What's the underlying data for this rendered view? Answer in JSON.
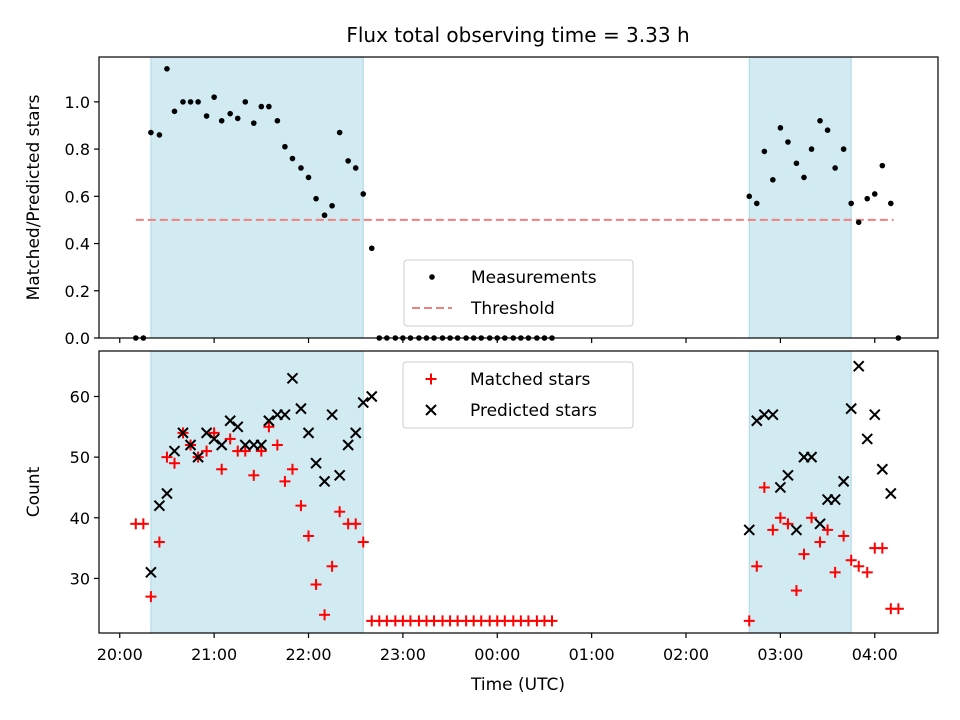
{
  "chart_data": {
    "title": "Flux total observing time = 3.33 h",
    "xlabel": "Time (UTC)",
    "x_ticks": [
      {
        "t": 20.0,
        "label": "20:00"
      },
      {
        "t": 21.0,
        "label": "21:00"
      },
      {
        "t": 22.0,
        "label": "22:00"
      },
      {
        "t": 23.0,
        "label": "23:00"
      },
      {
        "t": 24.0,
        "label": "00:00"
      },
      {
        "t": 25.0,
        "label": "01:00"
      },
      {
        "t": 26.0,
        "label": "02:00"
      },
      {
        "t": 27.0,
        "label": "03:00"
      },
      {
        "t": 28.0,
        "label": "04:00"
      }
    ],
    "xlim": [
      19.78,
      28.67
    ],
    "observing_windows": [
      [
        20.33,
        22.58
      ],
      [
        26.67,
        27.75
      ]
    ],
    "window_color": "#add8e6",
    "panels": [
      {
        "type": "scatter",
        "ylabel": "Matched/Predicted stars",
        "ylim": [
          0.0,
          1.19
        ],
        "y_ticks": [
          "0.0",
          "0.2",
          "0.4",
          "0.6",
          "0.8",
          "1.0"
        ],
        "y_tick_values": [
          0.0,
          0.2,
          0.4,
          0.6,
          0.8,
          1.0
        ],
        "threshold": {
          "label": "Threshold",
          "y": 0.5,
          "x_range": [
            20.17,
            28.2
          ],
          "color": "#f08080"
        },
        "legend": [
          "Measurements",
          "Threshold"
        ],
        "legend_position": "lower-center",
        "series": [
          {
            "name": "Measurements",
            "marker": "dot",
            "color": "#000000",
            "x": [
              20.17,
              20.25,
              20.33,
              20.42,
              20.5,
              20.58,
              20.67,
              20.75,
              20.83,
              20.92,
              21.0,
              21.08,
              21.17,
              21.25,
              21.33,
              21.42,
              21.5,
              21.58,
              21.67,
              21.75,
              21.83,
              21.92,
              22.0,
              22.08,
              22.17,
              22.25,
              22.33,
              22.42,
              22.5,
              22.58,
              22.67,
              22.75,
              22.83,
              22.92,
              23.0,
              23.08,
              23.17,
              23.25,
              23.33,
              23.42,
              23.5,
              23.58,
              23.67,
              23.75,
              23.83,
              23.92,
              24.0,
              24.08,
              24.17,
              24.25,
              24.33,
              24.42,
              24.5,
              24.58,
              26.67,
              26.75,
              26.83,
              26.92,
              27.0,
              27.08,
              27.17,
              27.25,
              27.33,
              27.42,
              27.5,
              27.58,
              27.67,
              27.75,
              27.83,
              27.92,
              28.0,
              28.08,
              28.17,
              28.25
            ],
            "y": [
              0.0,
              0.0,
              0.87,
              0.86,
              1.14,
              0.96,
              1.0,
              1.0,
              1.0,
              0.94,
              1.02,
              0.92,
              0.95,
              0.93,
              1.0,
              0.91,
              0.98,
              0.98,
              0.92,
              0.81,
              0.76,
              0.72,
              0.68,
              0.59,
              0.52,
              0.56,
              0.87,
              0.75,
              0.72,
              0.61,
              0.38,
              0.0,
              0.0,
              0.0,
              0.0,
              0.0,
              0.0,
              0.0,
              0.0,
              0.0,
              0.0,
              0.0,
              0.0,
              0.0,
              0.0,
              0.0,
              0.0,
              0.0,
              0.0,
              0.0,
              0.0,
              0.0,
              0.0,
              0.0,
              0.6,
              0.57,
              0.79,
              0.67,
              0.89,
              0.83,
              0.74,
              0.68,
              0.8,
              0.92,
              0.88,
              0.72,
              0.8,
              0.57,
              0.49,
              0.59,
              0.61,
              0.73,
              0.57,
              0.0
            ]
          }
        ]
      },
      {
        "type": "scatter",
        "ylabel": "Count",
        "ylim": [
          21.0,
          67.5
        ],
        "y_ticks": [
          "30",
          "40",
          "50",
          "60"
        ],
        "y_tick_values": [
          30,
          40,
          50,
          60
        ],
        "legend": [
          "Matched stars",
          "Predicted stars"
        ],
        "legend_position": "upper-center",
        "series": [
          {
            "name": "Matched stars",
            "marker": "plus",
            "color": "#ff0000",
            "x": [
              20.17,
              20.25,
              20.33,
              20.42,
              20.5,
              20.58,
              20.67,
              20.75,
              20.83,
              20.92,
              21.0,
              21.08,
              21.17,
              21.25,
              21.33,
              21.42,
              21.5,
              21.58,
              21.67,
              21.75,
              21.83,
              21.92,
              22.0,
              22.08,
              22.17,
              22.25,
              22.33,
              22.42,
              22.5,
              22.58,
              22.67,
              22.75,
              22.83,
              22.92,
              23.0,
              23.08,
              23.17,
              23.25,
              23.33,
              23.42,
              23.5,
              23.58,
              23.67,
              23.75,
              23.83,
              23.92,
              24.0,
              24.08,
              24.17,
              24.25,
              24.33,
              24.42,
              24.5,
              24.58,
              26.67,
              26.75,
              26.83,
              26.92,
              27.0,
              27.08,
              27.17,
              27.25,
              27.33,
              27.42,
              27.5,
              27.58,
              27.67,
              27.75,
              27.83,
              27.92,
              28.0,
              28.08,
              28.17,
              28.25
            ],
            "y": [
              39,
              39,
              27,
              36,
              50,
              49,
              54,
              52,
              50,
              51,
              54,
              48,
              53,
              51,
              51,
              47,
              51,
              55,
              52,
              46,
              48,
              42,
              37,
              29,
              24,
              32,
              41,
              39,
              39,
              36,
              23,
              23,
              23,
              23,
              23,
              23,
              23,
              23,
              23,
              23,
              23,
              23,
              23,
              23,
              23,
              23,
              23,
              23,
              23,
              23,
              23,
              23,
              23,
              23,
              23,
              32,
              45,
              38,
              40,
              39,
              28,
              34,
              40,
              36,
              38,
              31,
              37,
              33,
              32,
              31,
              35,
              35,
              25,
              25
            ]
          },
          {
            "name": "Predicted stars",
            "marker": "x",
            "color": "#000000",
            "x": [
              20.33,
              20.42,
              20.5,
              20.58,
              20.67,
              20.75,
              20.83,
              20.92,
              21.0,
              21.08,
              21.17,
              21.25,
              21.33,
              21.42,
              21.5,
              21.58,
              21.67,
              21.75,
              21.83,
              21.92,
              22.0,
              22.08,
              22.17,
              22.25,
              22.33,
              22.42,
              22.5,
              22.58,
              22.67,
              26.67,
              26.75,
              26.83,
              26.92,
              27.0,
              27.08,
              27.17,
              27.25,
              27.33,
              27.42,
              27.5,
              27.58,
              27.67,
              27.75,
              27.83,
              27.92,
              28.0,
              28.08,
              28.17
            ],
            "y": [
              31,
              42,
              44,
              51,
              54,
              52,
              50,
              54,
              53,
              52,
              56,
              55,
              52,
              52,
              52,
              56,
              57,
              57,
              63,
              58,
              54,
              49,
              46,
              57,
              47,
              52,
              54,
              59,
              60,
              38,
              56,
              57,
              57,
              45,
              47,
              38,
              50,
              50,
              39,
              43,
              43,
              46,
              58,
              65,
              53,
              57,
              48,
              44
            ]
          }
        ]
      }
    ]
  }
}
